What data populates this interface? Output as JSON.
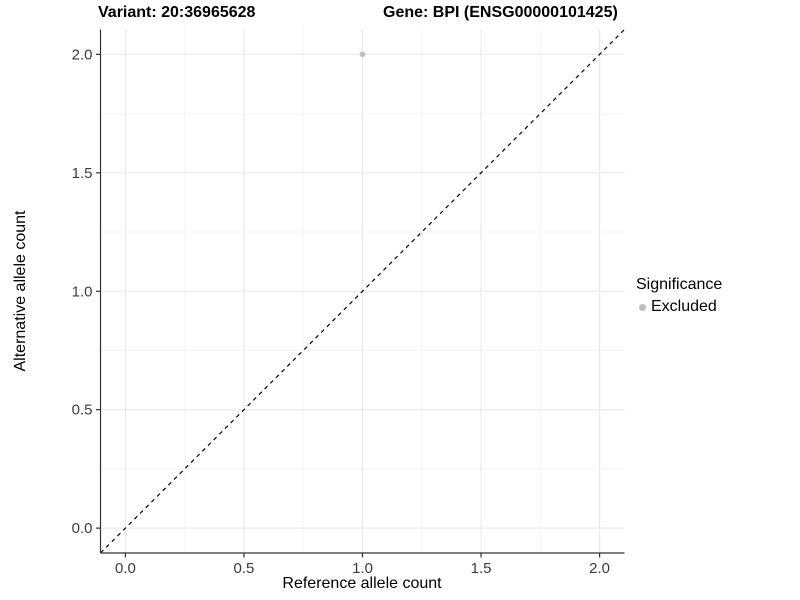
{
  "chart_data": {
    "type": "scatter",
    "title_variant": "Variant: 20:36965628",
    "title_gene": "Gene: BPI (ENSG00000101425)",
    "xlabel": "Reference allele count",
    "ylabel": "Alternative allele count",
    "xlim": [
      -0.105,
      2.105
    ],
    "ylim": [
      -0.105,
      2.105
    ],
    "x_ticks": [
      0.0,
      0.5,
      1.0,
      1.5,
      2.0
    ],
    "x_tick_labels": [
      "0.0",
      "0.5",
      "1.0",
      "1.5",
      "2.0"
    ],
    "y_ticks": [
      0.0,
      0.5,
      1.0,
      1.5,
      2.0
    ],
    "y_tick_labels": [
      "0.0",
      "0.5",
      "1.0",
      "1.5",
      "2.0"
    ],
    "minor_ticks": [
      0.25,
      0.75,
      1.25,
      1.75
    ],
    "grid": true,
    "points": [
      {
        "x": 1.0,
        "y": 2.0,
        "series": "Excluded"
      }
    ],
    "series": [
      {
        "name": "Excluded",
        "color": "#BEBEBE"
      }
    ],
    "reference_line": {
      "type": "identity",
      "style": "dashed",
      "color": "#000000"
    },
    "legend": {
      "title": "Significance",
      "position": "right",
      "items": [
        {
          "label": "Excluded",
          "color": "#BEBEBE"
        }
      ]
    },
    "colors": {
      "background": "#FFFFFF",
      "major_grid": "#E8E8E8",
      "minor_grid": "#F4F4F4",
      "axis": "#333333",
      "tick_label": "#3C3C3C",
      "point": "#BEBEBE"
    }
  }
}
